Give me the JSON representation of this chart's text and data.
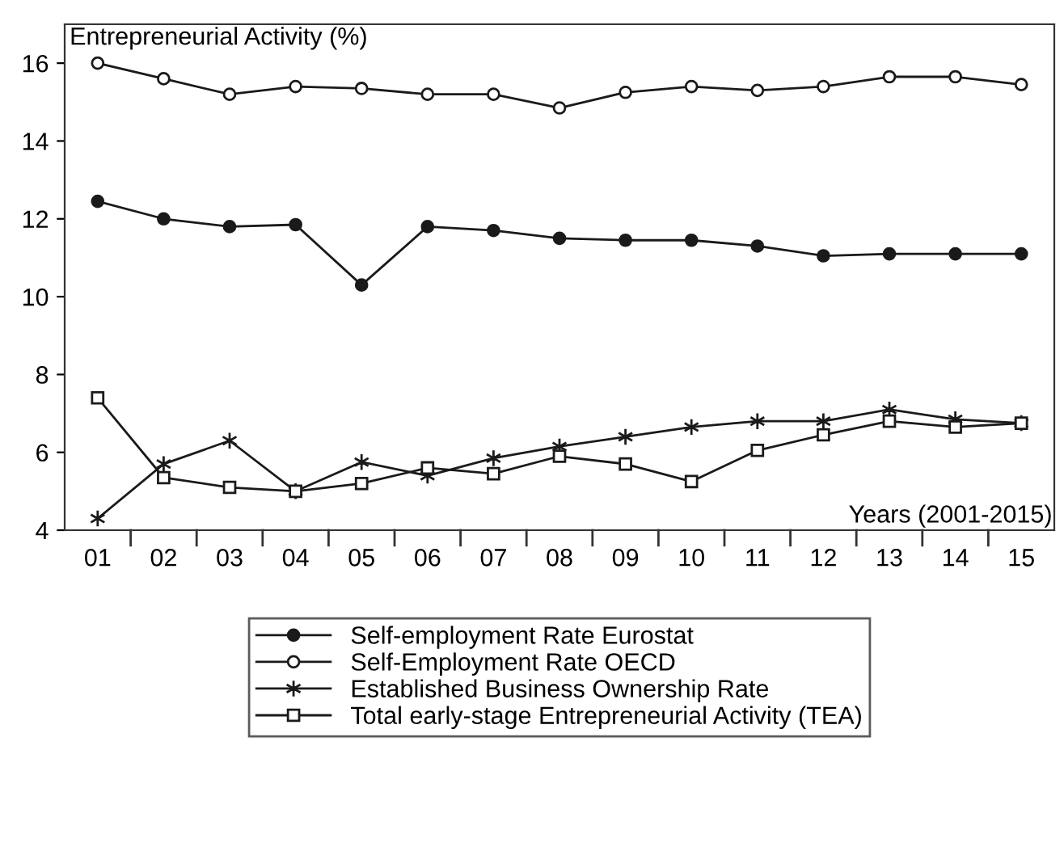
{
  "chart_data": {
    "type": "line",
    "xlabel": "Years (2001-2015)",
    "ylabel": "Entrepreneurial Activity (%)",
    "categories": [
      "01",
      "02",
      "03",
      "04",
      "05",
      "06",
      "07",
      "08",
      "09",
      "10",
      "11",
      "12",
      "13",
      "14",
      "15"
    ],
    "ylim": [
      4,
      17
    ],
    "yticks": [
      4,
      6,
      8,
      10,
      12,
      14,
      16
    ],
    "grid": false,
    "legend": "bottom",
    "series": [
      {
        "name": "Self-employment Rate Eurostat",
        "color": "#1a1a1a",
        "marker": "circle",
        "values": [
          12.45,
          12.0,
          11.8,
          11.85,
          10.3,
          11.8,
          11.7,
          11.5,
          11.45,
          11.45,
          11.3,
          11.05,
          11.1,
          11.1,
          11.1
        ]
      },
      {
        "name": "Self-Employment Rate OECD",
        "color": "#1a1a1a",
        "marker": "circle",
        "values": [
          16.0,
          15.6,
          15.2,
          15.4,
          15.35,
          15.2,
          15.2,
          14.85,
          15.25,
          15.4,
          15.3,
          15.4,
          15.65,
          15.65,
          15.45
        ]
      },
      {
        "name": "Established Business Ownership Rate",
        "color": "#1a1a1a",
        "marker": "cross",
        "values": [
          4.3,
          5.7,
          6.3,
          5.0,
          5.75,
          5.4,
          5.85,
          6.15,
          6.4,
          6.65,
          6.8,
          6.8,
          7.1,
          6.85,
          6.75
        ]
      },
      {
        "name": "Total early-stage Entrepreneurial Activity (TEA)",
        "color": "#1a1a1a",
        "marker": "square",
        "values": [
          7.4,
          5.35,
          5.1,
          5.0,
          5.2,
          5.6,
          5.45,
          5.9,
          5.7,
          5.25,
          6.05,
          6.45,
          6.8,
          6.65,
          6.75
        ]
      }
    ]
  }
}
